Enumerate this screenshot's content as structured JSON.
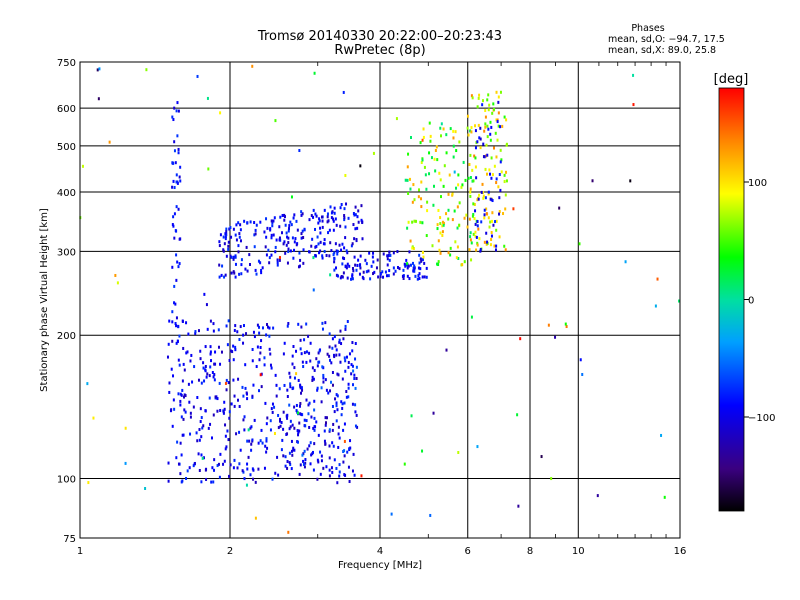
{
  "title": "Tromsø 20140330 20:22:00–20:23:43",
  "subtitle": "RwPretec (8p)",
  "stats": {
    "heading": "Phases",
    "line_o": "mean, sd,O: −94.7, 17.5",
    "line_x": "mean, sd,X:  89.0, 25.8"
  },
  "colorbar": {
    "label": "[deg]",
    "ticks": [
      {
        "value": 100,
        "label": "100"
      },
      {
        "value": 0,
        "label": "0"
      },
      {
        "value": -100,
        "label": "−100"
      }
    ],
    "range": [
      -180,
      180
    ]
  },
  "chart_data": {
    "type": "scatter",
    "xlabel": "Frequency [MHz]",
    "ylabel": "Stationary phase Virtual Height [km]",
    "x_scale": "log",
    "y_scale": "log",
    "xlim": [
      1,
      16
    ],
    "ylim": [
      75,
      750
    ],
    "x_ticks": [
      1,
      2,
      4,
      6,
      8,
      10,
      16
    ],
    "x_tick_labels": [
      "1",
      "2",
      "4",
      "6",
      "8",
      "10",
      "16"
    ],
    "y_ticks": [
      75,
      100,
      200,
      300,
      400,
      500,
      600,
      750
    ],
    "y_tick_labels": [
      "75",
      "100",
      "200",
      "300",
      "400",
      "500",
      "600",
      "750"
    ],
    "grid": true,
    "colorscale": "rainbow",
    "color_value": "phase [deg]",
    "points_summary": [
      {
        "region": "E/F1 low cluster",
        "x_range": [
          1.5,
          3.6
        ],
        "y_range": [
          98,
          215
        ],
        "phase_mean": -95
      },
      {
        "region": "F trace",
        "x_range": [
          1.9,
          5.0
        ],
        "y_range": [
          260,
          390
        ],
        "phase_mean": -95
      },
      {
        "region": "F2 cusp",
        "x_range": [
          4.5,
          7.2
        ],
        "y_range": [
          280,
          650
        ],
        "phase_mean": 89
      },
      {
        "region": "vertical streak",
        "x_range": [
          1.55,
          1.62
        ],
        "y_range": [
          110,
          630
        ],
        "phase_mean": -90
      }
    ]
  }
}
